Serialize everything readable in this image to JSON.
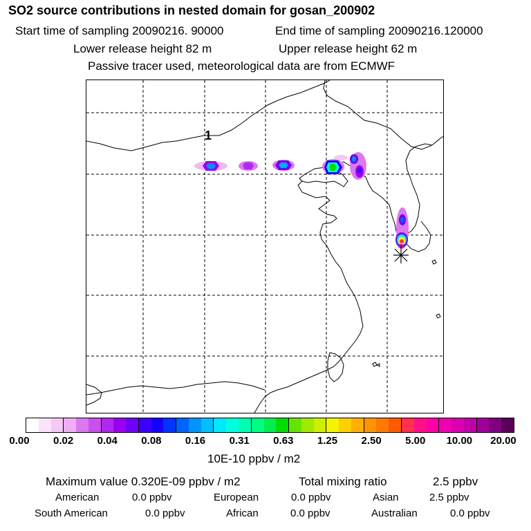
{
  "header": {
    "title": "SO2 source contributions in nested domain for gosan_200902",
    "start_time": "Start time of sampling 20090216. 90000",
    "end_time": "End time of sampling 20090216.120000",
    "lower_height": "Lower release height   82 m",
    "upper_height": "Upper release height   62 m",
    "tracer_note": "Passive tracer used, meteorological data are from ECMWF"
  },
  "map": {
    "label": "1",
    "receptor_marker": "asterisk-receptor-icon",
    "plumes": [
      {
        "name": "plume-1",
        "level": "purple"
      },
      {
        "name": "plume-2",
        "level": "magenta"
      },
      {
        "name": "plume-3",
        "level": "purple"
      },
      {
        "name": "plume-4",
        "level": "green"
      },
      {
        "name": "plume-5",
        "level": "purple"
      },
      {
        "name": "plume-6",
        "level": "yellow"
      }
    ]
  },
  "colorbar": {
    "colors": [
      "#ffffff",
      "#fbe3fb",
      "#f5c8f5",
      "#efb0f3",
      "#dc78ef",
      "#c850ef",
      "#b028f0",
      "#9a00ef",
      "#7000f6",
      "#3c00fc",
      "#1400ff",
      "#0034ff",
      "#0064ff",
      "#0094ff",
      "#00c0ff",
      "#00e8ff",
      "#00ffe0",
      "#00ffb0",
      "#00ff80",
      "#00ee50",
      "#00dd00",
      "#64e400",
      "#a0ea00",
      "#cef000",
      "#f4f400",
      "#ffd000",
      "#ffb000",
      "#ff9400",
      "#ff7a00",
      "#ff5a00",
      "#ff3050",
      "#ff1088",
      "#ff00a8",
      "#f000b0",
      "#d800b0",
      "#c000a8",
      "#a0009a",
      "#800080",
      "#5a0058"
    ],
    "ticks": [
      "0.00",
      "0.02",
      "0.04",
      "0.08",
      "0.16",
      "0.31",
      "0.63",
      "1.25",
      "2.50",
      "5.00",
      "10.00",
      "20.00"
    ],
    "units": "10E-10 ppbv / m2"
  },
  "summary": {
    "max_value": "Maximum value  0.320E-09 ppbv / m2",
    "total_label": "Total mixing ratio",
    "total_value": "2.5 ppbv",
    "american_label": "American",
    "american_value": "0.0 ppbv",
    "european_label": "European",
    "european_value": "0.0 ppbv",
    "asian_label": "Asian",
    "asian_value": "2.5 ppbv",
    "south_american_label": "South American",
    "south_american_value": "0.0 ppbv",
    "african_label": "African",
    "african_value": "0.0 ppbv",
    "australian_label": "Australian",
    "australian_value": "0.0 ppbv"
  }
}
